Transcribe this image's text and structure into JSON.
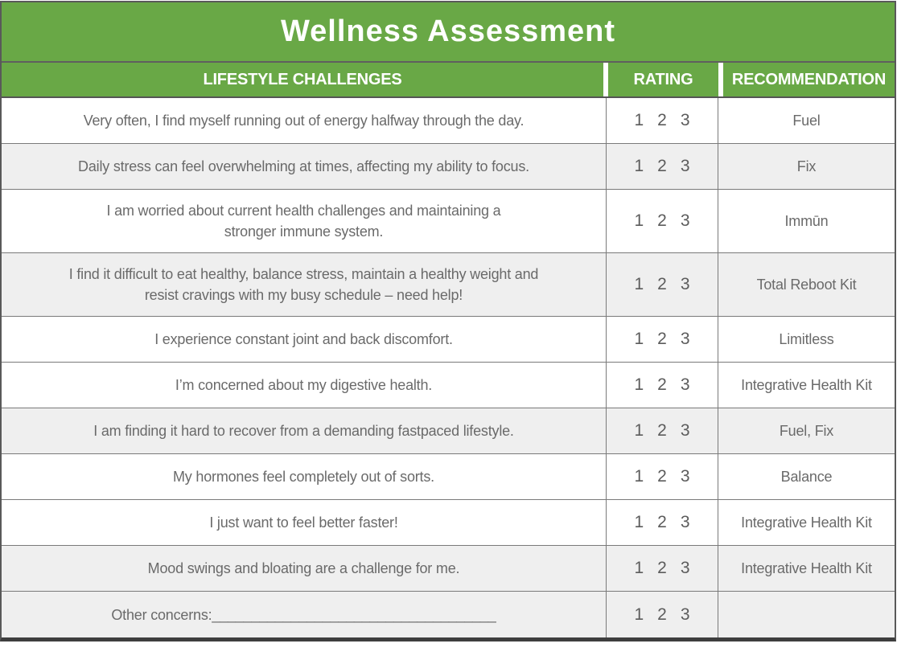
{
  "title": "Wellness Assessment",
  "columns": {
    "challenges": "LIFESTYLE CHALLENGES",
    "rating": "RATING",
    "recommendation": "RECOMMENDATION"
  },
  "rating_options": [
    "1",
    "2",
    "3"
  ],
  "rows": [
    {
      "challenge": "Very often, I find myself running out of energy halfway through the day.",
      "recommendation": "Fuel",
      "shaded": false
    },
    {
      "challenge": "Daily stress can feel overwhelming at times, affecting my ability to focus.",
      "recommendation": "Fix",
      "shaded": true
    },
    {
      "challenge": "I am worried about current health challenges and maintaining a\nstronger immune system.",
      "recommendation": "Immūn",
      "shaded": false
    },
    {
      "challenge": "I find it difficult to eat healthy, balance stress, maintain a healthy weight and\nresist cravings with my busy schedule – need help!",
      "recommendation": "Total Reboot Kit",
      "shaded": true
    },
    {
      "challenge": "I experience constant joint and back discomfort.",
      "recommendation": "Limitless",
      "shaded": false
    },
    {
      "challenge": "I’m concerned about my digestive health.",
      "recommendation": "Integrative Health Kit",
      "shaded": false
    },
    {
      "challenge": "I am finding it hard to recover from a demanding fastpaced lifestyle.",
      "recommendation": "Fuel, Fix",
      "shaded": true
    },
    {
      "challenge": "My hormones feel completely out of sorts.",
      "recommendation": "Balance",
      "shaded": false
    },
    {
      "challenge": "I just want to feel better faster!",
      "recommendation": "Integrative Health Kit",
      "shaded": false
    },
    {
      "challenge": "Mood swings and bloating are a challenge for me.",
      "recommendation": "Integrative Health Kit",
      "shaded": true
    },
    {
      "challenge": "Other concerns:____________________________________",
      "recommendation": "",
      "shaded": true
    }
  ],
  "colors": {
    "header_green": "#69a846",
    "shaded_row": "#efefef",
    "border_gray": "#7a7a7a",
    "outer_border": "#595959",
    "bottom_border": "#3e3e3e",
    "body_text": "#6a6a6a",
    "header_text": "#ffffff"
  }
}
